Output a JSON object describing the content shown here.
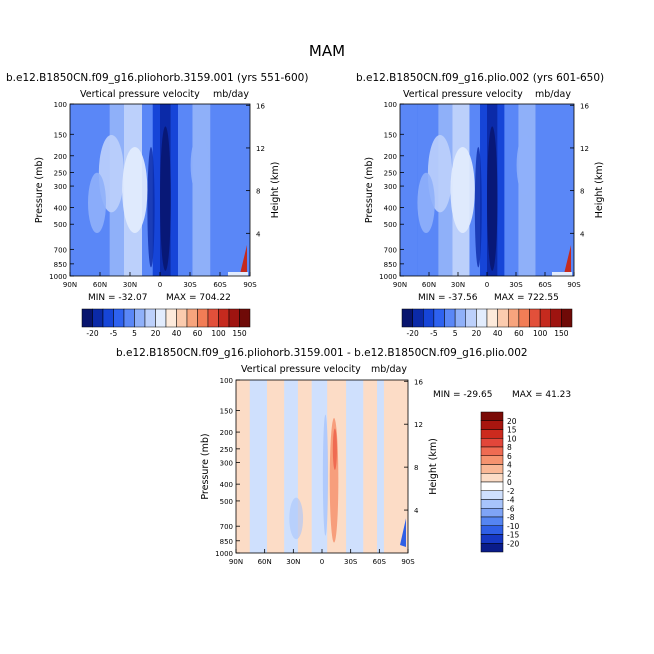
{
  "figure_title": "MAM",
  "chart_data": [
    {
      "type": "heatmap",
      "title": "b.e12.B1850CN.f09_g16.pliohorb.3159.001 (yrs 551-600)",
      "subtitle": "Vertical pressure velocity",
      "units": "mb/day",
      "xlabel": "",
      "ylabel": "Pressure (mb)",
      "y2label": "Height (km)",
      "x_ticks": [
        "90N",
        "60N",
        "30N",
        "0",
        "30S",
        "60S",
        "90S"
      ],
      "y_ticks": [
        100,
        150,
        200,
        250,
        300,
        400,
        500,
        700,
        850,
        1000
      ],
      "y2_ticks": [
        4,
        8,
        12,
        16
      ],
      "min_label": "MIN = -32.07",
      "max_label": "MAX = 704.22",
      "colorbar": {
        "orientation": "horizontal",
        "labels": [
          "-20",
          "-5",
          "5",
          "20",
          "40",
          "60",
          "100",
          "150"
        ],
        "colors": [
          "#08156e",
          "#0b2aa8",
          "#1645d8",
          "#2e62f0",
          "#5a87f7",
          "#8fb0f9",
          "#bcd0fb",
          "#e2ecfd",
          "#fdeadb",
          "#fbcbae",
          "#f7a47d",
          "#f27d56",
          "#e2503a",
          "#c52a1e",
          "#9e1410",
          "#6f0a07"
        ]
      }
    },
    {
      "type": "heatmap",
      "title": "b.e12.B1850CN.f09_g16.plio.002 (yrs 601-650)",
      "subtitle": "Vertical pressure velocity",
      "units": "mb/day",
      "xlabel": "",
      "ylabel": "Pressure (mb)",
      "y2label": "Height (km)",
      "x_ticks": [
        "90N",
        "60N",
        "30N",
        "0",
        "30S",
        "60S",
        "90S"
      ],
      "y_ticks": [
        100,
        150,
        200,
        250,
        300,
        400,
        500,
        700,
        850,
        1000
      ],
      "y2_ticks": [
        4,
        8,
        12,
        16
      ],
      "min_label": "MIN = -37.56",
      "max_label": "MAX = 722.55",
      "colorbar": {
        "orientation": "horizontal",
        "labels": [
          "-20",
          "-5",
          "5",
          "20",
          "40",
          "60",
          "100",
          "150"
        ],
        "colors": [
          "#08156e",
          "#0b2aa8",
          "#1645d8",
          "#2e62f0",
          "#5a87f7",
          "#8fb0f9",
          "#bcd0fb",
          "#e2ecfd",
          "#fdeadb",
          "#fbcbae",
          "#f7a47d",
          "#f27d56",
          "#e2503a",
          "#c52a1e",
          "#9e1410",
          "#6f0a07"
        ]
      }
    },
    {
      "type": "heatmap",
      "title": "b.e12.B1850CN.f09_g16.pliohorb.3159.001 - b.e12.B1850CN.f09_g16.plio.002",
      "subtitle": "Vertical pressure velocity",
      "units": "mb/day",
      "xlabel": "",
      "ylabel": "Pressure (mb)",
      "y2label": "Height (km)",
      "x_ticks": [
        "90N",
        "60N",
        "30N",
        "0",
        "30S",
        "60S",
        "90S"
      ],
      "y_ticks": [
        100,
        150,
        200,
        250,
        300,
        400,
        500,
        700,
        850,
        1000
      ],
      "y2_ticks": [
        4,
        8,
        12,
        16
      ],
      "min_label": "MIN = -29.65",
      "max_label": "MAX = 41.23",
      "colorbar": {
        "orientation": "vertical",
        "labels": [
          "20",
          "15",
          "10",
          "8",
          "6",
          "4",
          "2",
          "0",
          "-2",
          "-4",
          "-6",
          "-8",
          "-10",
          "-15",
          "-20"
        ],
        "colors": [
          "#7a0a06",
          "#a8160f",
          "#cc2a1e",
          "#e2463a",
          "#ef6b52",
          "#f6936f",
          "#fab896",
          "#fcdcc6",
          "#ffffff",
          "#cfe0fd",
          "#a8c4fb",
          "#7fa4f6",
          "#5585f2",
          "#2f5fe6",
          "#1638c4",
          "#0a1c8a"
        ]
      }
    }
  ]
}
